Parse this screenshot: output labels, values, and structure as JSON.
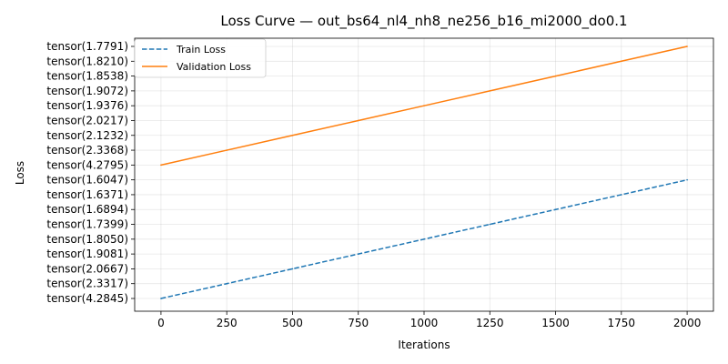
{
  "chart_data": {
    "type": "line",
    "title": "Loss Curve — out_bs64_nl4_nh8_ne256_b16_mi2000_do0.1",
    "xlabel": "Iterations",
    "ylabel": "Loss",
    "x_ticks": [
      0,
      250,
      500,
      750,
      1000,
      1250,
      1500,
      1750,
      2000
    ],
    "xlim": [
      -100,
      2100
    ],
    "y_categories": [
      "tensor(4.2845)",
      "tensor(2.3317)",
      "tensor(2.0667)",
      "tensor(1.9081)",
      "tensor(1.8050)",
      "tensor(1.7399)",
      "tensor(1.6894)",
      "tensor(1.6371)",
      "tensor(1.6047)",
      "tensor(4.2795)",
      "tensor(2.3368)",
      "tensor(2.1232)",
      "tensor(2.0217)",
      "tensor(1.9376)",
      "tensor(1.9072)",
      "tensor(1.8538)",
      "tensor(1.8210)",
      "tensor(1.7791)"
    ],
    "grid": true,
    "legend_position": "top-left",
    "series": [
      {
        "name": "Train Loss",
        "color": "#1f77b4",
        "style": "dashed",
        "x": [
          0,
          250,
          500,
          750,
          1000,
          1250,
          1500,
          1750,
          2000
        ],
        "y": [
          "tensor(4.2845)",
          "tensor(2.3317)",
          "tensor(2.0667)",
          "tensor(1.9081)",
          "tensor(1.8050)",
          "tensor(1.7399)",
          "tensor(1.6894)",
          "tensor(1.6371)",
          "tensor(1.6047)"
        ]
      },
      {
        "name": "Validation Loss",
        "color": "#ff7f0e",
        "style": "solid",
        "x": [
          0,
          250,
          500,
          750,
          1000,
          1250,
          1500,
          1750,
          2000
        ],
        "y": [
          "tensor(4.2795)",
          "tensor(2.3368)",
          "tensor(2.1232)",
          "tensor(2.0217)",
          "tensor(1.9376)",
          "tensor(1.9072)",
          "tensor(1.8538)",
          "tensor(1.8210)",
          "tensor(1.7791)"
        ]
      }
    ]
  }
}
